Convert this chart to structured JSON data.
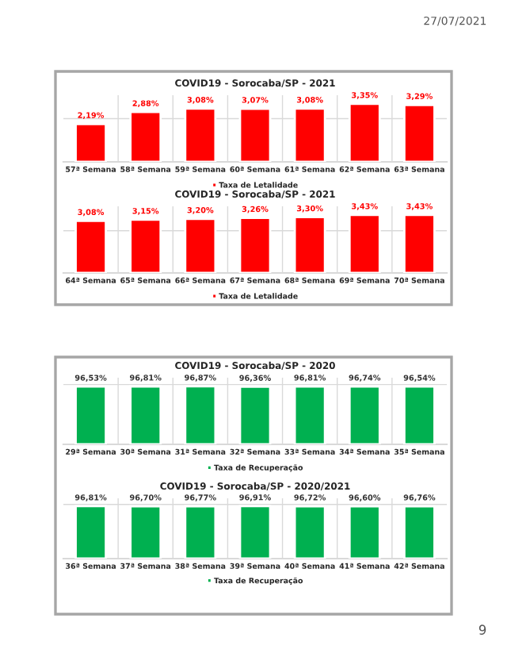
{
  "chart_data": [
    {
      "type": "bar",
      "title": "COVID19 - Sorocaba/SP - 2021",
      "categories": [
        "57ª Semana",
        "58ª Semana",
        "59ª Semana",
        "60ª Semana",
        "61ª Semana",
        "62ª Semana",
        "63ª Semana"
      ],
      "series": [
        {
          "name": "Taxa de Letalidade",
          "color": "#ff0000",
          "values": [
            2.19,
            2.88,
            3.08,
            3.07,
            3.08,
            3.35,
            3.29
          ],
          "value_labels": [
            "2,19%",
            "2,88%",
            "3,08%",
            "3,07%",
            "3,08%",
            "3,35%",
            "3,29%"
          ]
        }
      ],
      "legend": "bottom",
      "grid": true,
      "tick_labels": "x",
      "annotations": [
        "27/07/2021"
      ]
    },
    {
      "type": "bar",
      "title": "COVID19 - Sorocaba/SP - 2021",
      "categories": [
        "64ª Semana",
        "65ª Semana",
        "66ª Semana",
        "67ª Semana",
        "68ª Semana",
        "69ª Semana",
        "70ª Semana"
      ],
      "series": [
        {
          "name": "Taxa de Letalidade",
          "color": "#ff0000",
          "values": [
            3.08,
            3.15,
            3.2,
            3.26,
            3.3,
            3.43,
            3.43
          ],
          "value_labels": [
            "3,08%",
            "3,15%",
            "3,20%",
            "3,26%",
            "3,30%",
            "3,43%",
            "3,43%"
          ]
        }
      ],
      "legend": "bottom",
      "grid": true,
      "tick_labels": "x"
    },
    {
      "type": "bar",
      "title": "COVID19 - Sorocaba/SP - 2020",
      "categories": [
        "29ª Semana",
        "30ª Semana",
        "31ª Semana",
        "32ª Semana",
        "33ª Semana",
        "34ª Semana",
        "35ª Semana"
      ],
      "series": [
        {
          "name": "Taxa de Recuperação",
          "color": "#00b050",
          "values": [
            96.53,
            96.81,
            96.87,
            96.36,
            96.81,
            96.74,
            96.54
          ],
          "value_labels": [
            "96,53%",
            "96,81%",
            "96,87%",
            "96,36%",
            "96,81%",
            "96,74%",
            "96,54%"
          ]
        }
      ],
      "legend": "bottom",
      "grid": true,
      "tick_labels": "x"
    },
    {
      "type": "bar",
      "title": "COVID19 - Sorocaba/SP - 2020/2021",
      "categories": [
        "36ª Semana",
        "37ª Semana",
        "38ª Semana",
        "39ª Semana",
        "40ª Semana",
        "41ª Semana",
        "42ª Semana"
      ],
      "series": [
        {
          "name": "Taxa de Recuperação",
          "color": "#00b050",
          "values": [
            96.81,
            96.7,
            96.77,
            96.91,
            96.72,
            96.6,
            96.76
          ],
          "value_labels": [
            "96,81%",
            "96,70%",
            "96,77%",
            "96,91%",
            "96,72%",
            "96,60%",
            "96,76%"
          ]
        }
      ],
      "legend": "bottom",
      "grid": true,
      "tick_labels": "x",
      "annotations": [
        "9"
      ]
    }
  ]
}
